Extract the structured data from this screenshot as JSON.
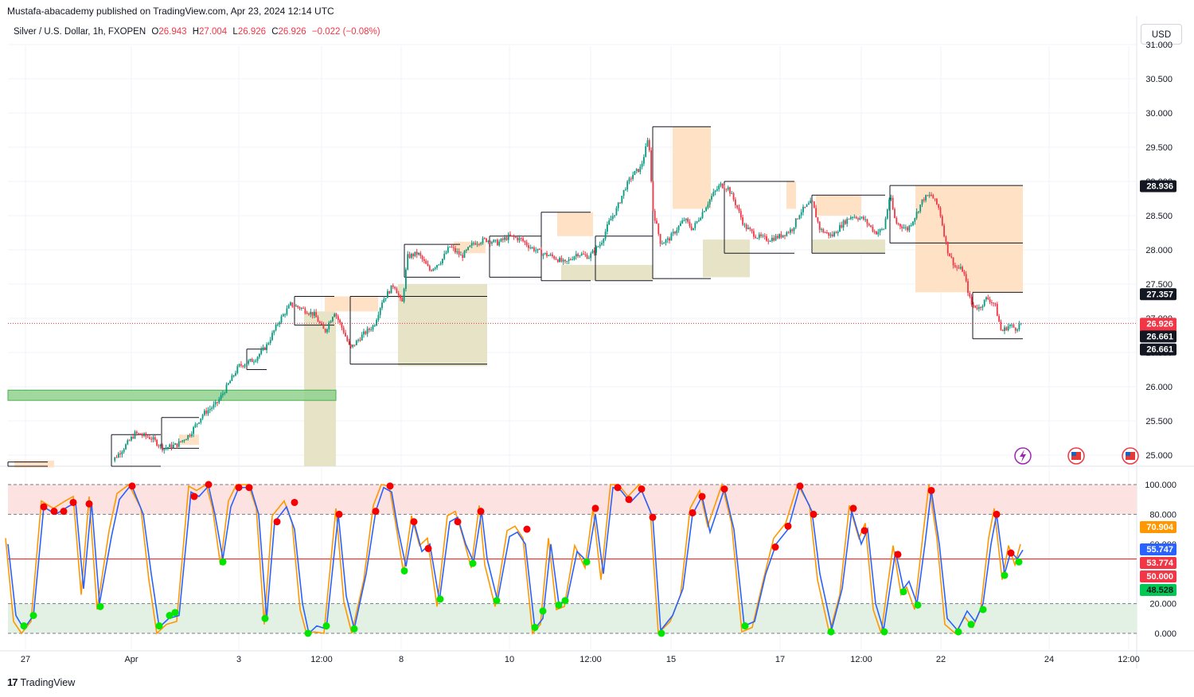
{
  "header": {
    "published": "Mustafa-abacademy published on TradingView.com, Apr 23, 2024 12:14 UTC"
  },
  "legend": {
    "symbol": "Silver / U.S. Dollar, 1h, FXOPEN",
    "o_label": "O",
    "o": "26.943",
    "h_label": "H",
    "h": "27.004",
    "l_label": "L",
    "l": "26.926",
    "c_label": "C",
    "c": "26.926",
    "change": "−0.022 (−0.08%)"
  },
  "currency": "USD",
  "footer": {
    "brand": "TradingView",
    "logo": "17"
  },
  "colors": {
    "up": "#089981",
    "down": "#f23645",
    "k_line": "#2962ff",
    "d_line": "#ff9800",
    "overbought_zone": "#fde2e2",
    "oversold_zone": "#e3f1e4",
    "mid_line": "#e53935",
    "premium_zone": "#ffe2c6",
    "discount_zone": "#e7e3c6",
    "demand_box": "#8fd18f"
  },
  "icons": [
    "lightning-icon",
    "us-flag-icon",
    "us-flag-icon"
  ],
  "chart_data": [
    {
      "type": "candlestick",
      "title": "Silver / U.S. Dollar, 1h, FXOPEN",
      "x_ticks": [
        "27",
        "Apr",
        "3",
        "12:00",
        "8",
        "10",
        "12:00",
        "15",
        "17",
        "12:00",
        "22",
        "24",
        "12:00"
      ],
      "y_ticks": [
        "25.000",
        "25.500",
        "26.000",
        "26.500",
        "27.000",
        "27.500",
        "28.000",
        "28.500",
        "29.000",
        "29.500",
        "30.000",
        "30.500",
        "31.000"
      ],
      "ylim": [
        24.82,
        31.0
      ],
      "close_path": [
        [
          0,
          24.82
        ],
        [
          130,
          24.82
        ],
        [
          140,
          24.9
        ],
        [
          155,
          25.1
        ],
        [
          170,
          25.32
        ],
        [
          190,
          25.25
        ],
        [
          205,
          25.1
        ],
        [
          222,
          25.15
        ],
        [
          238,
          25.3
        ],
        [
          255,
          25.6
        ],
        [
          272,
          25.75
        ],
        [
          285,
          26.0
        ],
        [
          300,
          26.3
        ],
        [
          320,
          26.4
        ],
        [
          335,
          26.6
        ],
        [
          350,
          26.95
        ],
        [
          365,
          27.2
        ],
        [
          378,
          27.15
        ],
        [
          395,
          27.05
        ],
        [
          408,
          26.8
        ],
        [
          420,
          27.1
        ],
        [
          432,
          26.8
        ],
        [
          440,
          26.55
        ],
        [
          455,
          26.75
        ],
        [
          470,
          26.9
        ],
        [
          480,
          27.25
        ],
        [
          495,
          27.5
        ],
        [
          505,
          27.2
        ],
        [
          512,
          27.9
        ],
        [
          525,
          27.95
        ],
        [
          540,
          27.7
        ],
        [
          555,
          27.85
        ],
        [
          565,
          28.05
        ],
        [
          580,
          27.9
        ],
        [
          595,
          28.1
        ],
        [
          610,
          28.15
        ],
        [
          625,
          28.1
        ],
        [
          640,
          28.2
        ],
        [
          655,
          28.15
        ],
        [
          665,
          28.05
        ],
        [
          680,
          27.95
        ],
        [
          695,
          27.9
        ],
        [
          710,
          27.8
        ],
        [
          725,
          27.95
        ],
        [
          740,
          27.9
        ],
        [
          755,
          28.1
        ],
        [
          765,
          28.4
        ],
        [
          775,
          28.6
        ],
        [
          785,
          28.9
        ],
        [
          795,
          29.1
        ],
        [
          805,
          29.2
        ],
        [
          815,
          29.65
        ],
        [
          820,
          28.6
        ],
        [
          830,
          28.1
        ],
        [
          840,
          28.15
        ],
        [
          850,
          28.3
        ],
        [
          860,
          28.45
        ],
        [
          870,
          28.3
        ],
        [
          880,
          28.5
        ],
        [
          895,
          28.8
        ],
        [
          905,
          28.95
        ],
        [
          915,
          28.9
        ],
        [
          925,
          28.65
        ],
        [
          935,
          28.35
        ],
        [
          950,
          28.2
        ],
        [
          965,
          28.15
        ],
        [
          980,
          28.2
        ],
        [
          995,
          28.3
        ],
        [
          1005,
          28.55
        ],
        [
          1020,
          28.7
        ],
        [
          1030,
          28.3
        ],
        [
          1045,
          28.2
        ],
        [
          1060,
          28.4
        ],
        [
          1070,
          28.5
        ],
        [
          1085,
          28.45
        ],
        [
          1100,
          28.25
        ],
        [
          1110,
          28.3
        ],
        [
          1118,
          28.8
        ],
        [
          1125,
          28.4
        ],
        [
          1140,
          28.3
        ],
        [
          1150,
          28.5
        ],
        [
          1160,
          28.75
        ],
        [
          1170,
          28.8
        ],
        [
          1180,
          28.6
        ],
        [
          1190,
          28.0
        ],
        [
          1200,
          27.75
        ],
        [
          1210,
          27.7
        ],
        [
          1220,
          27.2
        ],
        [
          1230,
          27.15
        ],
        [
          1240,
          27.3
        ],
        [
          1250,
          27.2
        ],
        [
          1258,
          26.8
        ],
        [
          1268,
          26.9
        ],
        [
          1276,
          26.85
        ],
        [
          1283,
          26.93
        ]
      ],
      "horizontal_line": 26.926,
      "price_tags": [
        {
          "label": "28.936",
          "value": 28.936,
          "style": "black"
        },
        {
          "label": "27.357",
          "value": 27.357,
          "style": "black"
        },
        {
          "label": "26.926",
          "sub": "45:36",
          "value": 26.926,
          "style": "red"
        },
        {
          "label": "26.661",
          "value": 26.74,
          "style": "black"
        },
        {
          "label": "26.661",
          "value": 26.55,
          "style": "black"
        }
      ],
      "premium_zones": [
        [
          18,
          68,
          24.92,
          24.82
        ],
        [
          225,
          250,
          25.3,
          25.15
        ],
        [
          408,
          475,
          27.32,
          27.1
        ],
        [
          570,
          610,
          28.12,
          27.95
        ],
        [
          700,
          745,
          28.55,
          28.2
        ],
        [
          845,
          893,
          29.8,
          28.6
        ],
        [
          988,
          1000,
          29.0,
          28.6
        ],
        [
          1025,
          1082,
          28.8,
          28.5
        ],
        [
          1150,
          1285,
          28.94,
          27.38
        ]
      ],
      "discount_zones": [
        [
          382,
          422,
          27.1,
          24.82
        ],
        [
          500,
          612,
          27.5,
          26.3
        ],
        [
          705,
          820,
          27.78,
          27.55
        ],
        [
          883,
          942,
          28.15,
          27.6
        ],
        [
          1020,
          1112,
          28.15,
          27.95
        ]
      ],
      "structure_boxes": [
        [
          10,
          60,
          24.9,
          24.82
        ],
        [
          140,
          202,
          25.3,
          24.82
        ],
        [
          203,
          250,
          25.55,
          25.1
        ],
        [
          310,
          335,
          26.55,
          26.25
        ],
        [
          370,
          420,
          27.32,
          26.9
        ],
        [
          440,
          612,
          27.32,
          26.33
        ],
        [
          508,
          578,
          28.08,
          27.6
        ],
        [
          615,
          680,
          28.2,
          27.6
        ],
        [
          680,
          742,
          28.55,
          27.55
        ],
        [
          748,
          820,
          28.2,
          27.55
        ],
        [
          820,
          893,
          29.8,
          27.58
        ],
        [
          910,
          998,
          29.0,
          27.95
        ],
        [
          1020,
          1112,
          28.8,
          27.95
        ],
        [
          1118,
          1285,
          28.94,
          28.1
        ],
        [
          1222,
          1285,
          27.38,
          26.7
        ]
      ],
      "demand_box": [
        10,
        422,
        25.95,
        25.8
      ]
    },
    {
      "type": "line",
      "title": "Stochastic RSI",
      "y_ticks": [
        "0.000",
        "20.000",
        "40.000",
        "60.000",
        "80.000",
        "100.000"
      ],
      "ylim": [
        0,
        100
      ],
      "overbought": 80,
      "oversold": 20,
      "midline": 50,
      "value_tags": [
        {
          "label": "70.904",
          "value": 70.904,
          "style": "orange"
        },
        {
          "label": "55.747",
          "value": 55.747,
          "style": "blue"
        },
        {
          "label": "53.774",
          "value": 53.774,
          "style": "red"
        },
        {
          "label": "50.000",
          "value": 50.0,
          "style": "red"
        },
        {
          "label": "48.528",
          "value": 48.528,
          "style": "green"
        }
      ],
      "k_path": [
        [
          10,
          60
        ],
        [
          20,
          12
        ],
        [
          30,
          3
        ],
        [
          42,
          12
        ],
        [
          55,
          85
        ],
        [
          70,
          80
        ],
        [
          85,
          85
        ],
        [
          95,
          88
        ],
        [
          105,
          30
        ],
        [
          115,
          88
        ],
        [
          125,
          20
        ],
        [
          140,
          65
        ],
        [
          150,
          90
        ],
        [
          165,
          100
        ],
        [
          180,
          80
        ],
        [
          190,
          40
        ],
        [
          200,
          4
        ],
        [
          212,
          10
        ],
        [
          225,
          12
        ],
        [
          240,
          95
        ],
        [
          250,
          92
        ],
        [
          262,
          99
        ],
        [
          270,
          80
        ],
        [
          280,
          50
        ],
        [
          290,
          85
        ],
        [
          300,
          98
        ],
        [
          315,
          98
        ],
        [
          325,
          80
        ],
        [
          335,
          10
        ],
        [
          345,
          75
        ],
        [
          360,
          85
        ],
        [
          370,
          70
        ],
        [
          380,
          20
        ],
        [
          388,
          0
        ],
        [
          398,
          5
        ],
        [
          410,
          3
        ],
        [
          425,
          80
        ],
        [
          435,
          25
        ],
        [
          445,
          3
        ],
        [
          460,
          40
        ],
        [
          472,
          82
        ],
        [
          482,
          98
        ],
        [
          492,
          95
        ],
        [
          500,
          70
        ],
        [
          510,
          45
        ],
        [
          520,
          75
        ],
        [
          530,
          55
        ],
        [
          540,
          60
        ],
        [
          552,
          22
        ],
        [
          565,
          75
        ],
        [
          575,
          78
        ],
        [
          585,
          60
        ],
        [
          595,
          48
        ],
        [
          605,
          82
        ],
        [
          612,
          50
        ],
        [
          625,
          22
        ],
        [
          640,
          65
        ],
        [
          650,
          68
        ],
        [
          660,
          60
        ],
        [
          672,
          3
        ],
        [
          682,
          10
        ],
        [
          692,
          60
        ],
        [
          702,
          20
        ],
        [
          712,
          22
        ],
        [
          725,
          55
        ],
        [
          738,
          48
        ],
        [
          748,
          80
        ],
        [
          758,
          40
        ],
        [
          770,
          98
        ],
        [
          780,
          96
        ],
        [
          792,
          88
        ],
        [
          806,
          96
        ],
        [
          820,
          78
        ],
        [
          830,
          2
        ],
        [
          845,
          12
        ],
        [
          858,
          30
        ],
        [
          870,
          80
        ],
        [
          882,
          92
        ],
        [
          892,
          68
        ],
        [
          910,
          97
        ],
        [
          922,
          70
        ],
        [
          935,
          5
        ],
        [
          948,
          8
        ],
        [
          962,
          40
        ],
        [
          975,
          60
        ],
        [
          990,
          70
        ],
        [
          1005,
          99
        ],
        [
          1020,
          82
        ],
        [
          1030,
          40
        ],
        [
          1045,
          3
        ],
        [
          1058,
          30
        ],
        [
          1070,
          82
        ],
        [
          1082,
          60
        ],
        [
          1090,
          70
        ],
        [
          1100,
          20
        ],
        [
          1110,
          2
        ],
        [
          1125,
          55
        ],
        [
          1135,
          30
        ],
        [
          1142,
          35
        ],
        [
          1152,
          20
        ],
        [
          1162,
          60
        ],
        [
          1170,
          96
        ],
        [
          1180,
          60
        ],
        [
          1190,
          10
        ],
        [
          1203,
          2
        ],
        [
          1215,
          15
        ],
        [
          1225,
          8
        ],
        [
          1235,
          20
        ],
        [
          1245,
          60
        ],
        [
          1252,
          80
        ],
        [
          1262,
          40
        ],
        [
          1270,
          55
        ],
        [
          1278,
          50
        ],
        [
          1285,
          56
        ]
      ],
      "d_offset": [
        3,
        4
      ],
      "red_dots": [
        [
          55,
          85
        ],
        [
          68,
          82
        ],
        [
          80,
          82
        ],
        [
          92,
          88
        ],
        [
          112,
          87
        ],
        [
          166,
          99
        ],
        [
          244,
          92
        ],
        [
          262,
          100
        ],
        [
          300,
          98
        ],
        [
          313,
          98
        ],
        [
          348,
          75
        ],
        [
          370,
          88
        ],
        [
          426,
          80
        ],
        [
          472,
          82
        ],
        [
          490,
          99
        ],
        [
          520,
          75
        ],
        [
          538,
          57
        ],
        [
          575,
          75
        ],
        [
          604,
          82
        ],
        [
          662,
          70
        ],
        [
          748,
          84
        ],
        [
          776,
          98
        ],
        [
          790,
          90
        ],
        [
          806,
          97
        ],
        [
          820,
          78
        ],
        [
          870,
          81
        ],
        [
          882,
          92
        ],
        [
          910,
          97
        ],
        [
          974,
          58
        ],
        [
          990,
          72
        ],
        [
          1005,
          99
        ],
        [
          1022,
          80
        ],
        [
          1072,
          84
        ],
        [
          1086,
          69
        ],
        [
          1128,
          53
        ],
        [
          1170,
          96
        ],
        [
          1252,
          80
        ],
        [
          1270,
          54
        ]
      ],
      "green_dots": [
        [
          30,
          5
        ],
        [
          42,
          12
        ],
        [
          126,
          18
        ],
        [
          200,
          5
        ],
        [
          213,
          12
        ],
        [
          220,
          14
        ],
        [
          280,
          48
        ],
        [
          333,
          10
        ],
        [
          387,
          0
        ],
        [
          410,
          5
        ],
        [
          445,
          3
        ],
        [
          508,
          42
        ],
        [
          553,
          23
        ],
        [
          594,
          47
        ],
        [
          624,
          22
        ],
        [
          672,
          4
        ],
        [
          682,
          15
        ],
        [
          702,
          19
        ],
        [
          710,
          22
        ],
        [
          737,
          48
        ],
        [
          831,
          0
        ],
        [
          936,
          5
        ],
        [
          1044,
          1
        ],
        [
          1111,
          1
        ],
        [
          1135,
          28
        ],
        [
          1153,
          19
        ],
        [
          1204,
          1
        ],
        [
          1220,
          6
        ],
        [
          1235,
          16
        ],
        [
          1262,
          39
        ],
        [
          1280,
          48
        ]
      ]
    }
  ]
}
